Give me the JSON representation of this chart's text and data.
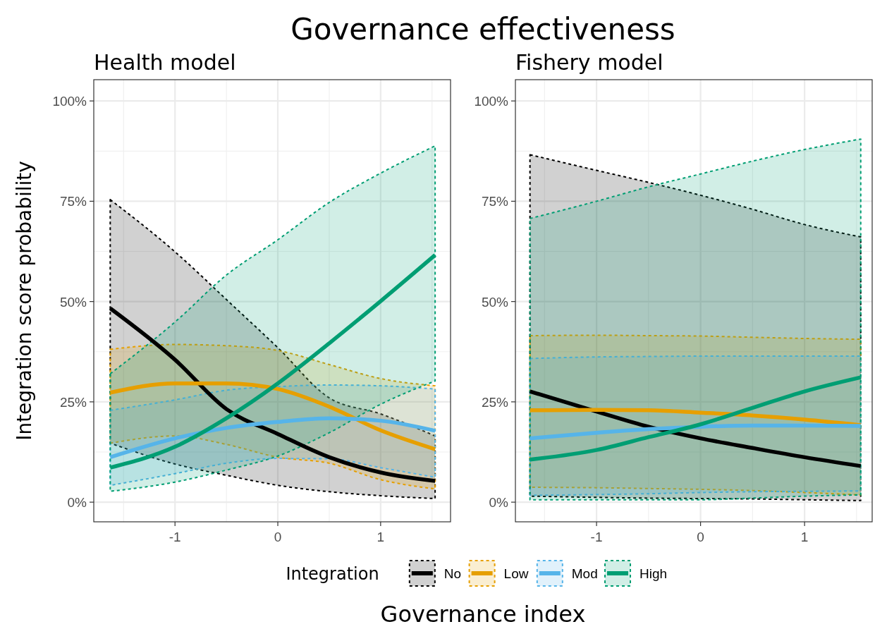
{
  "chart_data": [
    {
      "type": "line",
      "title": "Governance effectiveness",
      "subtitle": "Health model",
      "xlabel": "Governance index",
      "ylabel": "Integration score probability",
      "legend_title": "Integration",
      "legend": "bottom",
      "grid": true,
      "x": [
        -1.63,
        -1,
        -0.5,
        0,
        0.5,
        1,
        1.53
      ],
      "xlim": [
        -1.79,
        1.68
      ],
      "xticks": [
        -1,
        0,
        1
      ],
      "ylim": [
        -4.9,
        105.3
      ],
      "yticks": [
        {
          "value": 0,
          "label": "0%"
        },
        {
          "value": 25,
          "label": "25%"
        },
        {
          "value": 50,
          "label": "50%"
        },
        {
          "value": 75,
          "label": "75%"
        },
        {
          "value": 100,
          "label": "100%"
        }
      ],
      "series": [
        {
          "name": "No",
          "color": "#000000",
          "values": [
            48.3,
            35.5,
            23.2,
            17,
            11.2,
            7.4,
            5.3
          ],
          "lower": [
            14.7,
            9.5,
            6.7,
            4.2,
            2.6,
            1.6,
            0.9
          ],
          "upper": [
            75.4,
            62.4,
            50.5,
            38.5,
            26,
            22,
            16.5
          ]
        },
        {
          "name": "Low",
          "color": "#e69f00",
          "values": [
            27.3,
            29.6,
            29.6,
            28.2,
            23.8,
            17.9,
            13.2
          ],
          "lower": [
            14.7,
            16.5,
            14.4,
            11.2,
            9.7,
            5.6,
            3.3
          ],
          "upper": [
            38.1,
            39.3,
            39,
            37.8,
            34.3,
            30.8,
            29
          ]
        },
        {
          "name": "Mod",
          "color": "#56b4e9",
          "values": [
            11.2,
            15.9,
            18.5,
            20,
            20.9,
            20.3,
            17.8
          ],
          "lower": [
            4.2,
            7.1,
            9.7,
            10.9,
            10.8,
            8.6,
            6.2
          ],
          "upper": [
            22.9,
            25.5,
            27.9,
            28.8,
            29.2,
            29,
            28.2
          ]
        },
        {
          "name": "High",
          "color": "#009e73",
          "values": [
            8.6,
            13.8,
            20.9,
            29.6,
            39.6,
            50.1,
            61.6
          ],
          "lower": [
            2.7,
            5,
            8,
            11.5,
            17.3,
            24.4,
            30.2
          ],
          "upper": [
            32,
            44.9,
            56.6,
            65.4,
            74.7,
            82,
            88.8
          ]
        }
      ]
    },
    {
      "type": "line",
      "subtitle": "Fishery model",
      "grid": true,
      "x": [
        -1.64,
        -1,
        -0.5,
        0,
        0.5,
        1,
        1.54
      ],
      "xlim": [
        -1.78,
        1.65
      ],
      "xticks": [
        -1,
        0,
        1
      ],
      "ylim": [
        -4.9,
        105.3
      ],
      "yticks": [
        {
          "value": 0,
          "label": "0%"
        },
        {
          "value": 25,
          "label": "25%"
        },
        {
          "value": 50,
          "label": "50%"
        },
        {
          "value": 75,
          "label": "75%"
        },
        {
          "value": 100,
          "label": "100%"
        }
      ],
      "series": [
        {
          "color": "#000000",
          "values": [
            27.6,
            22.6,
            18.8,
            15.9,
            13.5,
            11.2,
            9
          ],
          "lower": [
            1.5,
            1.2,
            1,
            0.9,
            0.8,
            0.6,
            0.4
          ],
          "upper": [
            86.6,
            82.7,
            79.7,
            76.5,
            73,
            69.2,
            66.1
          ]
        },
        {
          "color": "#e69f00",
          "values": [
            22.9,
            23,
            22.9,
            22.3,
            21.6,
            20.6,
            19.2
          ],
          "lower": [
            3.7,
            3.6,
            3.4,
            3.2,
            2.9,
            2.4,
            1.8
          ],
          "upper": [
            41.5,
            41.6,
            41.5,
            41.4,
            41.1,
            40.8,
            40.6
          ]
        },
        {
          "color": "#56b4e9",
          "values": [
            15.9,
            17.3,
            18.2,
            18.8,
            19.1,
            19.1,
            19
          ],
          "lower": [
            1.7,
            1.9,
            2.1,
            2.4,
            2.6,
            2.7,
            2.8
          ],
          "upper": [
            35.8,
            36.2,
            36.3,
            36.4,
            36.4,
            36.4,
            36.4
          ]
        },
        {
          "color": "#009e73",
          "values": [
            10.6,
            13,
            16.2,
            19.4,
            23.5,
            27.6,
            31.1
          ],
          "lower": [
            0.6,
            0.6,
            0.6,
            0.6,
            1,
            1.5,
            1.8
          ],
          "upper": [
            70.7,
            75,
            78.6,
            81.8,
            85,
            87.9,
            90.5
          ]
        }
      ]
    }
  ]
}
